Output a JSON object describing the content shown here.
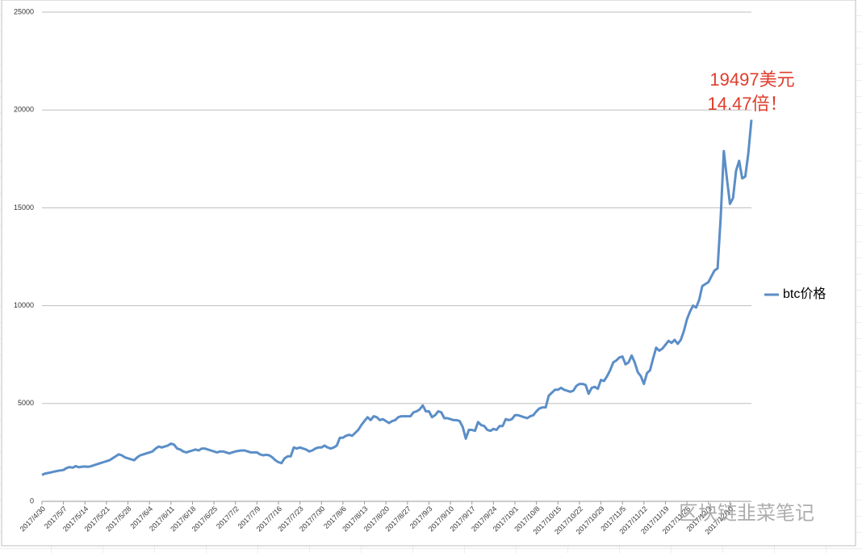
{
  "chart_data": {
    "type": "line",
    "categories": [
      "2017/4/30",
      null,
      null,
      null,
      null,
      null,
      null,
      "2017/5/7",
      null,
      null,
      null,
      null,
      null,
      null,
      "2017/5/14",
      null,
      null,
      null,
      null,
      null,
      null,
      "2017/5/21",
      null,
      null,
      null,
      null,
      null,
      null,
      "2017/5/28",
      null,
      null,
      null,
      null,
      null,
      null,
      "2017/6/4",
      null,
      null,
      null,
      null,
      null,
      null,
      "2017/6/11",
      null,
      null,
      null,
      null,
      null,
      null,
      "2017/6/18",
      null,
      null,
      null,
      null,
      null,
      null,
      "2017/6/25",
      null,
      null,
      null,
      null,
      null,
      null,
      "2017/7/2",
      null,
      null,
      null,
      null,
      null,
      null,
      "2017/7/9",
      null,
      null,
      null,
      null,
      null,
      null,
      "2017/7/16",
      null,
      null,
      null,
      null,
      null,
      null,
      "2017/7/23",
      null,
      null,
      null,
      null,
      null,
      null,
      "2017/7/30",
      null,
      null,
      null,
      null,
      null,
      null,
      "2017/8/6",
      null,
      null,
      null,
      null,
      null,
      null,
      "2017/8/13",
      null,
      null,
      null,
      null,
      null,
      null,
      "2017/8/20",
      null,
      null,
      null,
      null,
      null,
      null,
      "2017/8/27",
      null,
      null,
      null,
      null,
      null,
      null,
      "2017/9/3",
      null,
      null,
      null,
      null,
      null,
      null,
      "2017/9/10",
      null,
      null,
      null,
      null,
      null,
      null,
      "2017/9/17",
      null,
      null,
      null,
      null,
      null,
      null,
      "2017/9/24",
      null,
      null,
      null,
      null,
      null,
      null,
      "2017/10/1",
      null,
      null,
      null,
      null,
      null,
      null,
      "2017/10/8",
      null,
      null,
      null,
      null,
      null,
      null,
      "2017/10/15",
      null,
      null,
      null,
      null,
      null,
      null,
      "2017/10/22",
      null,
      null,
      null,
      null,
      null,
      null,
      "2017/10/29",
      null,
      null,
      null,
      null,
      null,
      null,
      "2017/11/5",
      null,
      null,
      null,
      null,
      null,
      null,
      "2017/11/12",
      null,
      null,
      null,
      null,
      null,
      null,
      "2017/11/19",
      null,
      null,
      null,
      null,
      null,
      null,
      "2017/11/26",
      null,
      null,
      null,
      null,
      null,
      null,
      "2017/12/3",
      null,
      null,
      null,
      null,
      null,
      null,
      "2017/12/10",
      null,
      null,
      null,
      null,
      null,
      null,
      null
    ],
    "series": [
      {
        "name": "btc价格",
        "color": "#5b8ec7",
        "values": [
          1350,
          1420,
          1450,
          1480,
          1520,
          1550,
          1580,
          1600,
          1700,
          1750,
          1720,
          1800,
          1740,
          1770,
          1780,
          1760,
          1800,
          1850,
          1900,
          1950,
          2000,
          2050,
          2100,
          2200,
          2300,
          2400,
          2350,
          2250,
          2200,
          2150,
          2100,
          2250,
          2350,
          2400,
          2450,
          2500,
          2550,
          2700,
          2800,
          2750,
          2800,
          2850,
          2950,
          2900,
          2700,
          2650,
          2550,
          2500,
          2550,
          2600,
          2650,
          2600,
          2700,
          2700,
          2650,
          2600,
          2550,
          2500,
          2550,
          2550,
          2500,
          2450,
          2500,
          2550,
          2580,
          2600,
          2600,
          2550,
          2500,
          2500,
          2500,
          2400,
          2350,
          2380,
          2350,
          2250,
          2100,
          2000,
          1950,
          2200,
          2300,
          2300,
          2750,
          2700,
          2750,
          2700,
          2650,
          2550,
          2600,
          2700,
          2750,
          2750,
          2850,
          2750,
          2700,
          2750,
          2850,
          3250,
          3250,
          3350,
          3400,
          3350,
          3500,
          3650,
          3900,
          4100,
          4300,
          4150,
          4350,
          4300,
          4150,
          4200,
          4100,
          4000,
          4100,
          4150,
          4300,
          4350,
          4350,
          4350,
          4350,
          4550,
          4600,
          4700,
          4900,
          4600,
          4600,
          4300,
          4400,
          4600,
          4550,
          4250,
          4250,
          4200,
          4150,
          4150,
          4100,
          3800,
          3200,
          3650,
          3650,
          3600,
          4050,
          3900,
          3850,
          3650,
          3600,
          3700,
          3650,
          3850,
          3850,
          4200,
          4150,
          4200,
          4400,
          4400,
          4350,
          4300,
          4250,
          4350,
          4400,
          4600,
          4750,
          4800,
          4800,
          5400,
          5550,
          5700,
          5700,
          5800,
          5700,
          5650,
          5600,
          5650,
          5900,
          6000,
          6000,
          5950,
          5500,
          5800,
          5850,
          5750,
          6200,
          6150,
          6400,
          6700,
          7100,
          7200,
          7350,
          7400,
          7000,
          7100,
          7450,
          7100,
          6600,
          6400,
          6000,
          6550,
          6700,
          7300,
          7850,
          7700,
          7800,
          8000,
          8200,
          8100,
          8250,
          8050,
          8250,
          8700,
          9300,
          9700,
          10000,
          9900,
          10300,
          11000,
          11100,
          11200,
          11500,
          11800,
          11900,
          14500,
          17900,
          16500,
          15200,
          15500,
          16900,
          17400,
          16500,
          16600,
          17800,
          19497
        ]
      }
    ],
    "ylim": [
      0,
      25000
    ],
    "yticks": [
      0,
      5000,
      10000,
      15000,
      20000,
      25000
    ],
    "grid": true,
    "legend": "right",
    "annotations": [
      "19497美元",
      "14.47倍！"
    ],
    "annotation_color": "#e03c2c",
    "watermark": "区块链韭菜笔记"
  }
}
